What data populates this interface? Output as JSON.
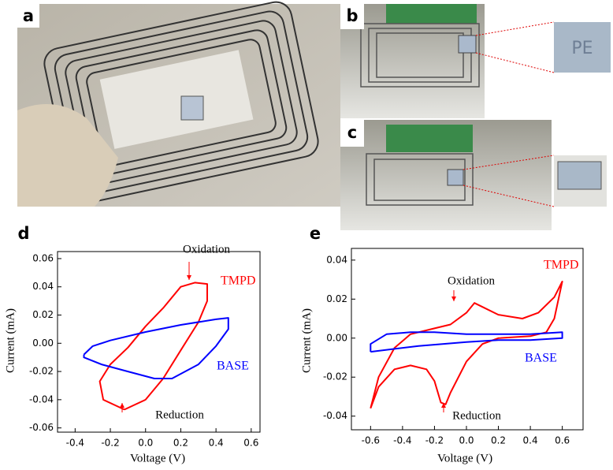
{
  "panel_labels": [
    "a",
    "b",
    "c"
  ],
  "inset_text": "PE",
  "chart_data": [
    {
      "type": "line",
      "label": "d",
      "xlabel": "Voltage (V)",
      "ylabel": "Current (mA)",
      "xlim": [
        -0.5,
        0.65
      ],
      "ylim": [
        -0.063,
        0.065
      ],
      "xticks": [
        -0.4,
        -0.2,
        {
          "value": 0,
          "label": "0.0"
        },
        0.2,
        0.4,
        0.6
      ],
      "yticks": [
        -0.06,
        -0.04,
        -0.02,
        {
          "value": 0,
          "label": "0.00"
        },
        0.02,
        0.04,
        0.06
      ],
      "annotations": [
        "Oxidation",
        "Reduction"
      ],
      "series": [
        {
          "name": "TMPD",
          "color": "#ff0000",
          "x": [
            -0.12,
            0,
            0.1,
            0.2,
            0.3,
            0.35,
            0.35,
            0.28,
            0.2,
            0.1,
            0,
            -0.1,
            -0.2,
            -0.26,
            -0.24,
            -0.12
          ],
          "values": [
            -0.047,
            -0.04,
            -0.025,
            -0.005,
            0.015,
            0.03,
            0.042,
            0.043,
            0.04,
            0.025,
            0.012,
            -0.003,
            -0.015,
            -0.027,
            -0.04,
            -0.047
          ]
        },
        {
          "name": "BASE",
          "color": "#0000ff",
          "x": [
            -0.35,
            -0.3,
            -0.2,
            0,
            0.2,
            0.4,
            0.47,
            0.47,
            0.4,
            0.3,
            0.15,
            0.05,
            -0.1,
            -0.25,
            -0.35,
            -0.35
          ],
          "values": [
            -0.008,
            -0.002,
            0.002,
            0.008,
            0.013,
            0.017,
            0.018,
            0.01,
            -0.002,
            -0.015,
            -0.025,
            -0.025,
            -0.02,
            -0.015,
            -0.01,
            -0.008
          ]
        }
      ]
    },
    {
      "type": "line",
      "label": "e",
      "xlabel": "Voltage (V)",
      "ylabel": "Current (mA)",
      "xlim": [
        -0.72,
        0.73
      ],
      "ylim": [
        -0.047,
        0.046
      ],
      "xticks": [
        -0.6,
        -0.4,
        -0.2,
        {
          "value": 0,
          "label": "0.0"
        },
        0.2,
        0.4,
        0.6
      ],
      "yticks": [
        -0.04,
        -0.02,
        {
          "value": 0,
          "label": "0.00"
        },
        0.02,
        0.04
      ],
      "annotations": [
        "Oxidation",
        "Reduction"
      ],
      "series": [
        {
          "name": "TMPD",
          "color": "#ff0000",
          "x": [
            -0.6,
            -0.55,
            -0.45,
            -0.35,
            -0.25,
            -0.2,
            -0.16,
            -0.13,
            -0.1,
            0,
            0.1,
            0.2,
            0.4,
            0.5,
            0.55,
            0.6,
            0.55,
            0.45,
            0.35,
            0.2,
            0.1,
            0.05,
            0,
            -0.1,
            -0.2,
            -0.35,
            -0.45,
            -0.55,
            -0.6
          ],
          "values": [
            -0.036,
            -0.025,
            -0.016,
            -0.014,
            -0.016,
            -0.022,
            -0.033,
            -0.034,
            -0.028,
            -0.012,
            -0.003,
            0,
            0.001,
            0.003,
            0.01,
            0.029,
            0.021,
            0.013,
            0.01,
            0.012,
            0.016,
            0.018,
            0.013,
            0.007,
            0.005,
            0.002,
            -0.005,
            -0.02,
            -0.036
          ]
        },
        {
          "name": "BASE",
          "color": "#0000ff",
          "x": [
            -0.6,
            -0.6,
            -0.5,
            -0.35,
            -0.2,
            0,
            0.2,
            0.4,
            0.6,
            0.6,
            0.4,
            0.2,
            0,
            -0.3,
            -0.6
          ],
          "values": [
            -0.007,
            -0.003,
            0.002,
            0.003,
            0.003,
            0.002,
            0.002,
            0.002,
            0.003,
            0,
            -0.001,
            -0.001,
            -0.002,
            -0.004,
            -0.007
          ]
        }
      ]
    }
  ]
}
